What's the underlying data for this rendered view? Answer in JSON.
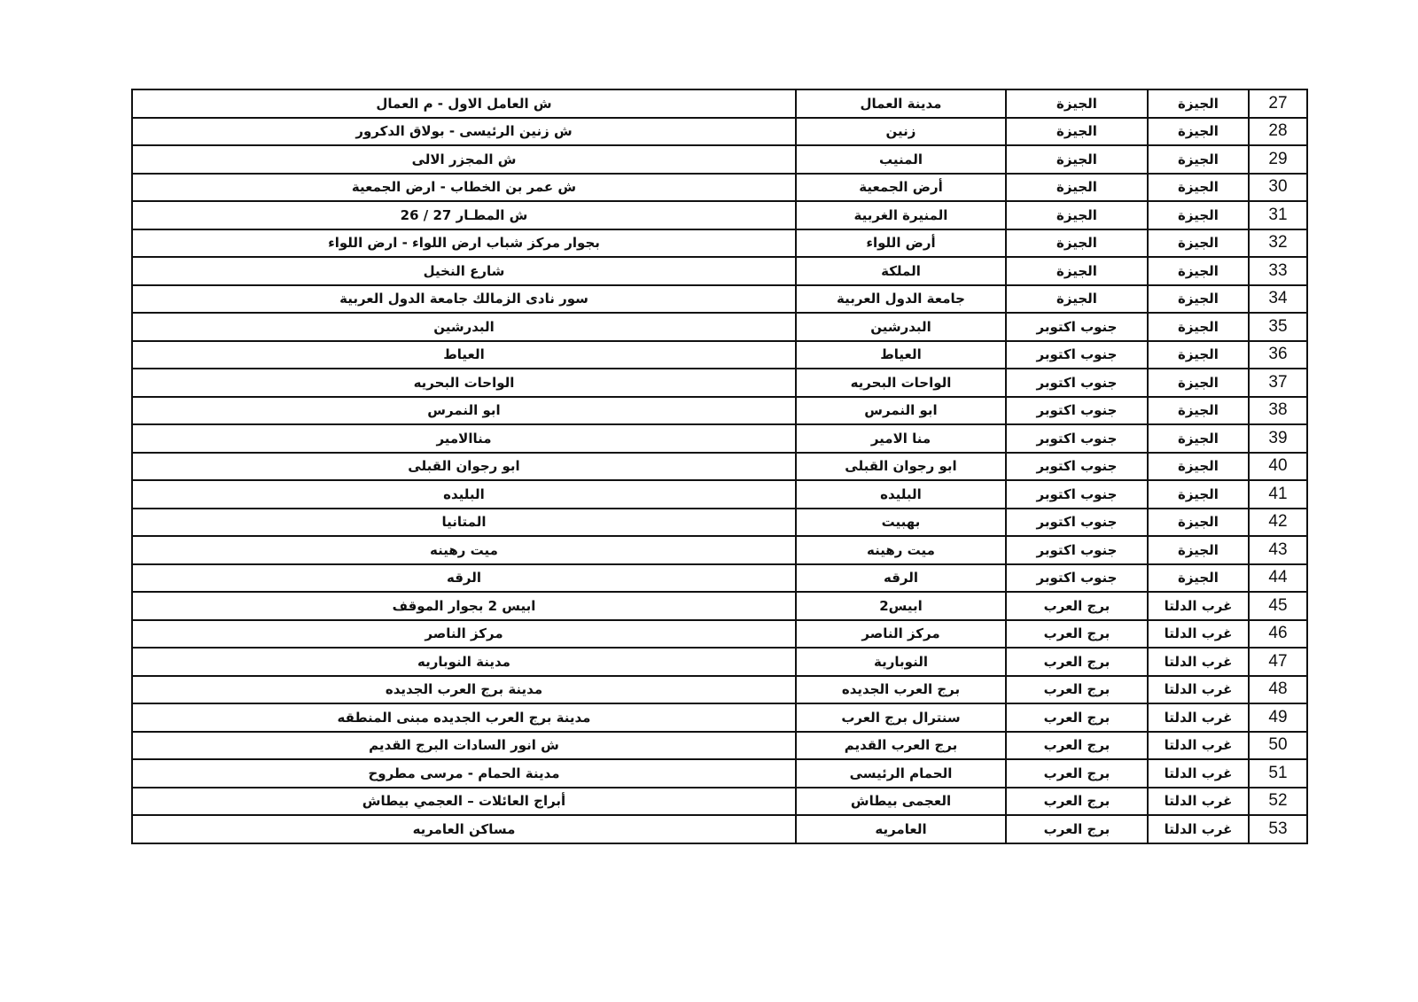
{
  "rows": [
    {
      "num": "27",
      "region": "الجيزة",
      "sector": "الجيزة",
      "center": "مدينة العمال",
      "address": "ش العامل الاول - م العمال"
    },
    {
      "num": "28",
      "region": "الجيزة",
      "sector": "الجيزة",
      "center": "زنين",
      "address": "ش زنين الرئيسى - بولاق الدكرور"
    },
    {
      "num": "29",
      "region": "الجيزة",
      "sector": "الجيزة",
      "center": "المنيب",
      "address": "ش المجزر الالى"
    },
    {
      "num": "30",
      "region": "الجيزة",
      "sector": "الجيزة",
      "center": "أرض الجمعية",
      "address": "ش عمر بن الخطاب  - ارض الجمعية"
    },
    {
      "num": "31",
      "region": "الجيزة",
      "sector": "الجيزة",
      "center": "المنيرة الغربية",
      "address": "ش المطـار   27 / 26"
    },
    {
      "num": "32",
      "region": "الجيزة",
      "sector": "الجيزة",
      "center": "أرض اللواء",
      "address": "بجوار مركز شباب ارض اللواء - ارض اللواء"
    },
    {
      "num": "33",
      "region": "الجيزة",
      "sector": "الجيزة",
      "center": "الملكة",
      "address": "شارع النخيل"
    },
    {
      "num": "34",
      "region": "الجيزة",
      "sector": "الجيزة",
      "center": "جامعة الدول العربية",
      "address": "سور نادى الزمالك جامعة الدول العربية"
    },
    {
      "num": "35",
      "region": "الجيزة",
      "sector": "جنوب اكتوبر",
      "center": "البدرشين",
      "address": "البدرشين"
    },
    {
      "num": "36",
      "region": "الجيزة",
      "sector": "جنوب اكتوبر",
      "center": "العياط",
      "address": "العياط"
    },
    {
      "num": "37",
      "region": "الجيزة",
      "sector": "جنوب اكتوبر",
      "center": "الواحات البحريه",
      "address": "الواحات البحريه"
    },
    {
      "num": "38",
      "region": "الجيزة",
      "sector": "جنوب اكتوبر",
      "center": "ابو النمرس",
      "address": "ابو النمرس"
    },
    {
      "num": "39",
      "region": "الجيزة",
      "sector": "جنوب اكتوبر",
      "center": "منا الامير",
      "address": "مناالامير"
    },
    {
      "num": "40",
      "region": "الجيزة",
      "sector": "جنوب اكتوبر",
      "center": "ابو رجوان القبلى",
      "address": "ابو رجوان القبلى"
    },
    {
      "num": "41",
      "region": "الجيزة",
      "sector": "جنوب اكتوبر",
      "center": "البليده",
      "address": "البليده"
    },
    {
      "num": "42",
      "region": "الجيزة",
      "sector": "جنوب اكتوبر",
      "center": "بهبيت",
      "address": "المتانيا"
    },
    {
      "num": "43",
      "region": "الجيزة",
      "sector": "جنوب اكتوبر",
      "center": "ميت رهينه",
      "address": "ميت رهينه"
    },
    {
      "num": "44",
      "region": "الجيزة",
      "sector": "جنوب اكتوبر",
      "center": "الرقه",
      "address": "الرقه"
    },
    {
      "num": "45",
      "region": "غرب الدلتا",
      "sector": "برج العرب",
      "center": "ابيس2",
      "address": "ابيس 2 بجوار الموقف"
    },
    {
      "num": "46",
      "region": "غرب الدلتا",
      "sector": "برج العرب",
      "center": "مركز الناصر",
      "address": "مركز الناصر"
    },
    {
      "num": "47",
      "region": "غرب الدلتا",
      "sector": "برج العرب",
      "center": "النوبارية",
      "address": "مدينة النوباريه"
    },
    {
      "num": "48",
      "region": "غرب الدلتا",
      "sector": "برج العرب",
      "center": "برج العرب الجديده",
      "address": "مدينة برج العرب الجديده"
    },
    {
      "num": "49",
      "region": "غرب الدلتا",
      "sector": "برج العرب",
      "center": "سنترال برج العرب",
      "address": "مدينة برج العرب الجديده مبنى المنطقه"
    },
    {
      "num": "50",
      "region": "غرب الدلتا",
      "sector": "برج العرب",
      "center": "برج العرب القديم",
      "address": "ش انور السادات البرج القديم"
    },
    {
      "num": "51",
      "region": "غرب الدلتا",
      "sector": "برج العرب",
      "center": "الحمام الرئيسى",
      "address": "مدينة الحمام - مرسى مطروح"
    },
    {
      "num": "52",
      "region": "غرب الدلتا",
      "sector": "برج العرب",
      "center": "العجمى  بيطاش",
      "address": "أبراج العائلات – العجمي بيطاش"
    },
    {
      "num": "53",
      "region": "غرب الدلتا",
      "sector": "برج العرب",
      "center": "العامريه",
      "address": "مساكن العامريه"
    }
  ]
}
